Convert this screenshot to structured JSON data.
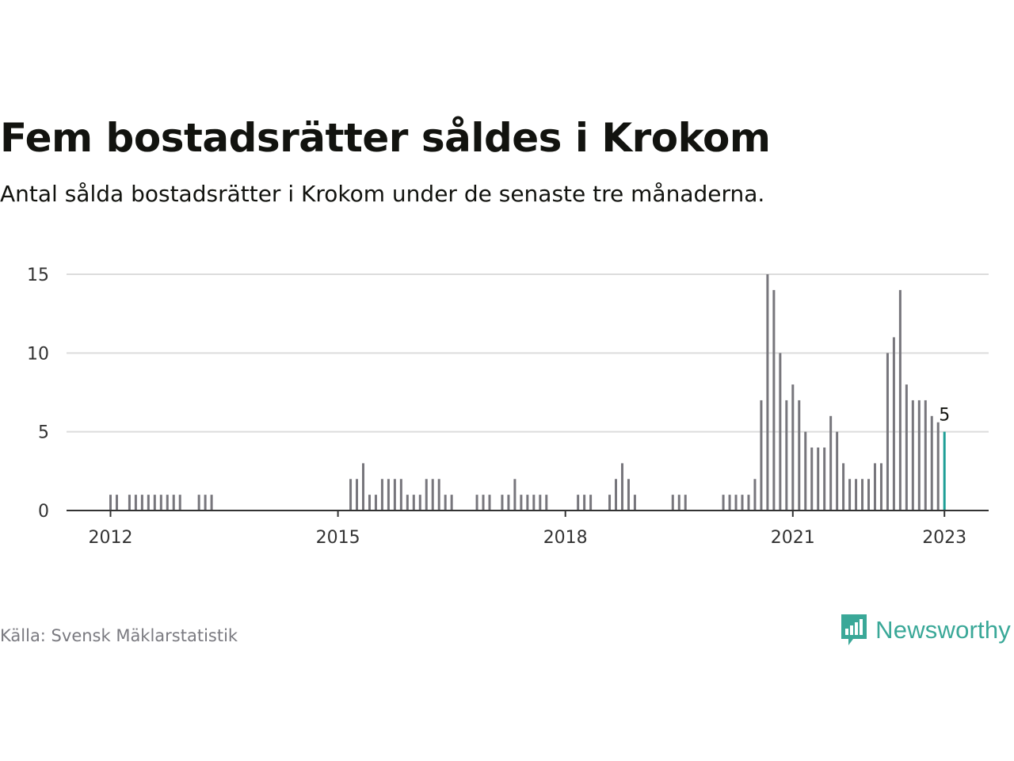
{
  "header": {
    "title": "Fem bostadsrätter såldes i Krokom",
    "subtitle": "Antal sålda bostadsrätter i Krokom under de senaste tre månaderna."
  },
  "footer": {
    "source": "Källa: Svensk Mäklarstatistik",
    "logo_text": "Newsworthy",
    "logo_icon": "newsworthy-chart-bubble-icon"
  },
  "colors": {
    "bar": "#77767c",
    "highlight": "#1f9e96",
    "grid": "#dcdcdc",
    "axis": "#333333",
    "text": "#12130f",
    "muted": "#7a7a80",
    "brand": "#3aa898"
  },
  "chart_data": {
    "type": "bar",
    "x_start": "2012-01",
    "x_end": "2023-01",
    "x_ticks": [
      "2012",
      "2015",
      "2018",
      "2021",
      "2023"
    ],
    "y_ticks": [
      "0",
      "5",
      "10",
      "15"
    ],
    "ylim": [
      0,
      15
    ],
    "grid": true,
    "highlight_label": "5",
    "series": [
      {
        "points": [
          {
            "x": "2012-01",
            "y": 1
          },
          {
            "x": "2012-02",
            "y": 1
          },
          {
            "x": "2012-04",
            "y": 1
          },
          {
            "x": "2012-05",
            "y": 1
          },
          {
            "x": "2012-06",
            "y": 1
          },
          {
            "x": "2012-07",
            "y": 1
          },
          {
            "x": "2012-08",
            "y": 1
          },
          {
            "x": "2012-09",
            "y": 1
          },
          {
            "x": "2012-10",
            "y": 1
          },
          {
            "x": "2012-11",
            "y": 1
          },
          {
            "x": "2012-12",
            "y": 1
          },
          {
            "x": "2013-03",
            "y": 1
          },
          {
            "x": "2013-04",
            "y": 1
          },
          {
            "x": "2013-05",
            "y": 1
          },
          {
            "x": "2015-03",
            "y": 2
          },
          {
            "x": "2015-04",
            "y": 2
          },
          {
            "x": "2015-05",
            "y": 3
          },
          {
            "x": "2015-06",
            "y": 1
          },
          {
            "x": "2015-07",
            "y": 1
          },
          {
            "x": "2015-08",
            "y": 2
          },
          {
            "x": "2015-09",
            "y": 2
          },
          {
            "x": "2015-10",
            "y": 2
          },
          {
            "x": "2015-11",
            "y": 2
          },
          {
            "x": "2015-12",
            "y": 1
          },
          {
            "x": "2016-01",
            "y": 1
          },
          {
            "x": "2016-02",
            "y": 1
          },
          {
            "x": "2016-03",
            "y": 2
          },
          {
            "x": "2016-04",
            "y": 2
          },
          {
            "x": "2016-05",
            "y": 2
          },
          {
            "x": "2016-06",
            "y": 1
          },
          {
            "x": "2016-07",
            "y": 1
          },
          {
            "x": "2016-11",
            "y": 1
          },
          {
            "x": "2016-12",
            "y": 1
          },
          {
            "x": "2017-01",
            "y": 1
          },
          {
            "x": "2017-03",
            "y": 1
          },
          {
            "x": "2017-04",
            "y": 1
          },
          {
            "x": "2017-05",
            "y": 2
          },
          {
            "x": "2017-06",
            "y": 1
          },
          {
            "x": "2017-07",
            "y": 1
          },
          {
            "x": "2017-08",
            "y": 1
          },
          {
            "x": "2017-09",
            "y": 1
          },
          {
            "x": "2017-10",
            "y": 1
          },
          {
            "x": "2018-03",
            "y": 1
          },
          {
            "x": "2018-04",
            "y": 1
          },
          {
            "x": "2018-05",
            "y": 1
          },
          {
            "x": "2018-08",
            "y": 1
          },
          {
            "x": "2018-09",
            "y": 2
          },
          {
            "x": "2018-10",
            "y": 3
          },
          {
            "x": "2018-11",
            "y": 2
          },
          {
            "x": "2018-12",
            "y": 1
          },
          {
            "x": "2019-06",
            "y": 1
          },
          {
            "x": "2019-07",
            "y": 1
          },
          {
            "x": "2019-08",
            "y": 1
          },
          {
            "x": "2020-02",
            "y": 1
          },
          {
            "x": "2020-03",
            "y": 1
          },
          {
            "x": "2020-04",
            "y": 1
          },
          {
            "x": "2020-05",
            "y": 1
          },
          {
            "x": "2020-06",
            "y": 1
          },
          {
            "x": "2020-07",
            "y": 2
          },
          {
            "x": "2020-08",
            "y": 7
          },
          {
            "x": "2020-09",
            "y": 15
          },
          {
            "x": "2020-10",
            "y": 14
          },
          {
            "x": "2020-11",
            "y": 10
          },
          {
            "x": "2020-12",
            "y": 7
          },
          {
            "x": "2021-01",
            "y": 8
          },
          {
            "x": "2021-02",
            "y": 7
          },
          {
            "x": "2021-03",
            "y": 5
          },
          {
            "x": "2021-04",
            "y": 4
          },
          {
            "x": "2021-05",
            "y": 4
          },
          {
            "x": "2021-06",
            "y": 4
          },
          {
            "x": "2021-07",
            "y": 6
          },
          {
            "x": "2021-08",
            "y": 5
          },
          {
            "x": "2021-09",
            "y": 3
          },
          {
            "x": "2021-10",
            "y": 2
          },
          {
            "x": "2021-11",
            "y": 2
          },
          {
            "x": "2021-12",
            "y": 2
          },
          {
            "x": "2022-01",
            "y": 2
          },
          {
            "x": "2022-02",
            "y": 3
          },
          {
            "x": "2022-03",
            "y": 3
          },
          {
            "x": "2022-04",
            "y": 10
          },
          {
            "x": "2022-05",
            "y": 11
          },
          {
            "x": "2022-06",
            "y": 14
          },
          {
            "x": "2022-07",
            "y": 8
          },
          {
            "x": "2022-08",
            "y": 7
          },
          {
            "x": "2022-09",
            "y": 7
          },
          {
            "x": "2022-10",
            "y": 7
          },
          {
            "x": "2022-11",
            "y": 6
          },
          {
            "x": "2022-12",
            "y": 5.6
          },
          {
            "x": "2023-01",
            "y": 5
          }
        ]
      }
    ]
  }
}
